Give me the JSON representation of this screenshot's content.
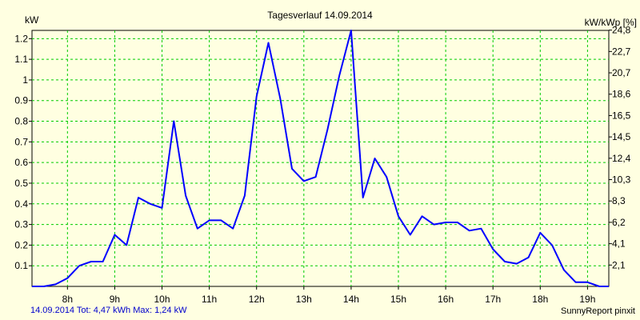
{
  "footer": {
    "summary": "14.09.2014 Tot: 4,47 kWh Max: 1,24 kW",
    "brand": "SunnyReport pinxit"
  },
  "chart_data": {
    "type": "line",
    "title": "Tagesverlauf 14.09.2014",
    "ylabel_left": "kW",
    "ylabel_right": "kW/kWp [%]",
    "xlim": [
      7.25,
      19.45
    ],
    "ylim": [
      0,
      1.24
    ],
    "grid": true,
    "colors": {
      "background": "#ffffe1",
      "grid": "#00cc00",
      "line": "#0000ff"
    },
    "x_ticks": [
      {
        "value": 8,
        "label": "8h"
      },
      {
        "value": 9,
        "label": "9h"
      },
      {
        "value": 10,
        "label": "10h"
      },
      {
        "value": 11,
        "label": "11h"
      },
      {
        "value": 12,
        "label": "12h"
      },
      {
        "value": 13,
        "label": "13h"
      },
      {
        "value": 14,
        "label": "14h"
      },
      {
        "value": 15,
        "label": "15h"
      },
      {
        "value": 16,
        "label": "16h"
      },
      {
        "value": 17,
        "label": "17h"
      },
      {
        "value": 18,
        "label": "18h"
      },
      {
        "value": 19,
        "label": "19h"
      }
    ],
    "y_ticks_left": [
      {
        "value": 0.1,
        "label": "0.1"
      },
      {
        "value": 0.2,
        "label": "0.2"
      },
      {
        "value": 0.3,
        "label": "0.3"
      },
      {
        "value": 0.4,
        "label": "0.4"
      },
      {
        "value": 0.5,
        "label": "0.5"
      },
      {
        "value": 0.6,
        "label": "0.6"
      },
      {
        "value": 0.7,
        "label": "0.7"
      },
      {
        "value": 0.8,
        "label": "0.8"
      },
      {
        "value": 0.9,
        "label": "0.9"
      },
      {
        "value": 1.0,
        "label": "1"
      },
      {
        "value": 1.1,
        "label": "1.1"
      },
      {
        "value": 1.2,
        "label": "1.2"
      }
    ],
    "y_ticks_right": [
      {
        "value": 0.1034,
        "label": "2,1"
      },
      {
        "value": 0.2069,
        "label": "4,1"
      },
      {
        "value": 0.3103,
        "label": "6,2"
      },
      {
        "value": 0.4138,
        "label": "8,3"
      },
      {
        "value": 0.5172,
        "label": "10,3"
      },
      {
        "value": 0.6207,
        "label": "12,4"
      },
      {
        "value": 0.7241,
        "label": "14,5"
      },
      {
        "value": 0.8276,
        "label": "16,5"
      },
      {
        "value": 0.931,
        "label": "18,6"
      },
      {
        "value": 1.0345,
        "label": "20,7"
      },
      {
        "value": 1.1379,
        "label": "22,7"
      },
      {
        "value": 1.2414,
        "label": "24,8"
      }
    ],
    "series": [
      {
        "x": [
          7.25,
          7.5,
          7.75,
          8.0,
          8.25,
          8.5,
          8.75,
          9.0,
          9.25,
          9.5,
          9.75,
          10.0,
          10.25,
          10.5,
          10.75,
          11.0,
          11.25,
          11.5,
          11.75,
          12.0,
          12.25,
          12.5,
          12.75,
          13.0,
          13.25,
          13.5,
          13.75,
          14.0,
          14.25,
          14.5,
          14.75,
          15.0,
          15.25,
          15.5,
          15.75,
          16.0,
          16.25,
          16.5,
          16.75,
          17.0,
          17.25,
          17.5,
          17.75,
          18.0,
          18.25,
          18.5,
          18.75,
          19.0,
          19.25,
          19.45
        ],
        "y": [
          0.0,
          0.0,
          0.01,
          0.04,
          0.1,
          0.12,
          0.12,
          0.25,
          0.2,
          0.43,
          0.4,
          0.38,
          0.8,
          0.44,
          0.28,
          0.32,
          0.32,
          0.28,
          0.44,
          0.92,
          1.18,
          0.91,
          0.57,
          0.51,
          0.53,
          0.76,
          1.02,
          1.24,
          0.43,
          0.62,
          0.53,
          0.34,
          0.25,
          0.34,
          0.3,
          0.31,
          0.31,
          0.27,
          0.28,
          0.18,
          0.12,
          0.11,
          0.14,
          0.26,
          0.2,
          0.08,
          0.02,
          0.02,
          0.0,
          0.0
        ]
      }
    ]
  }
}
